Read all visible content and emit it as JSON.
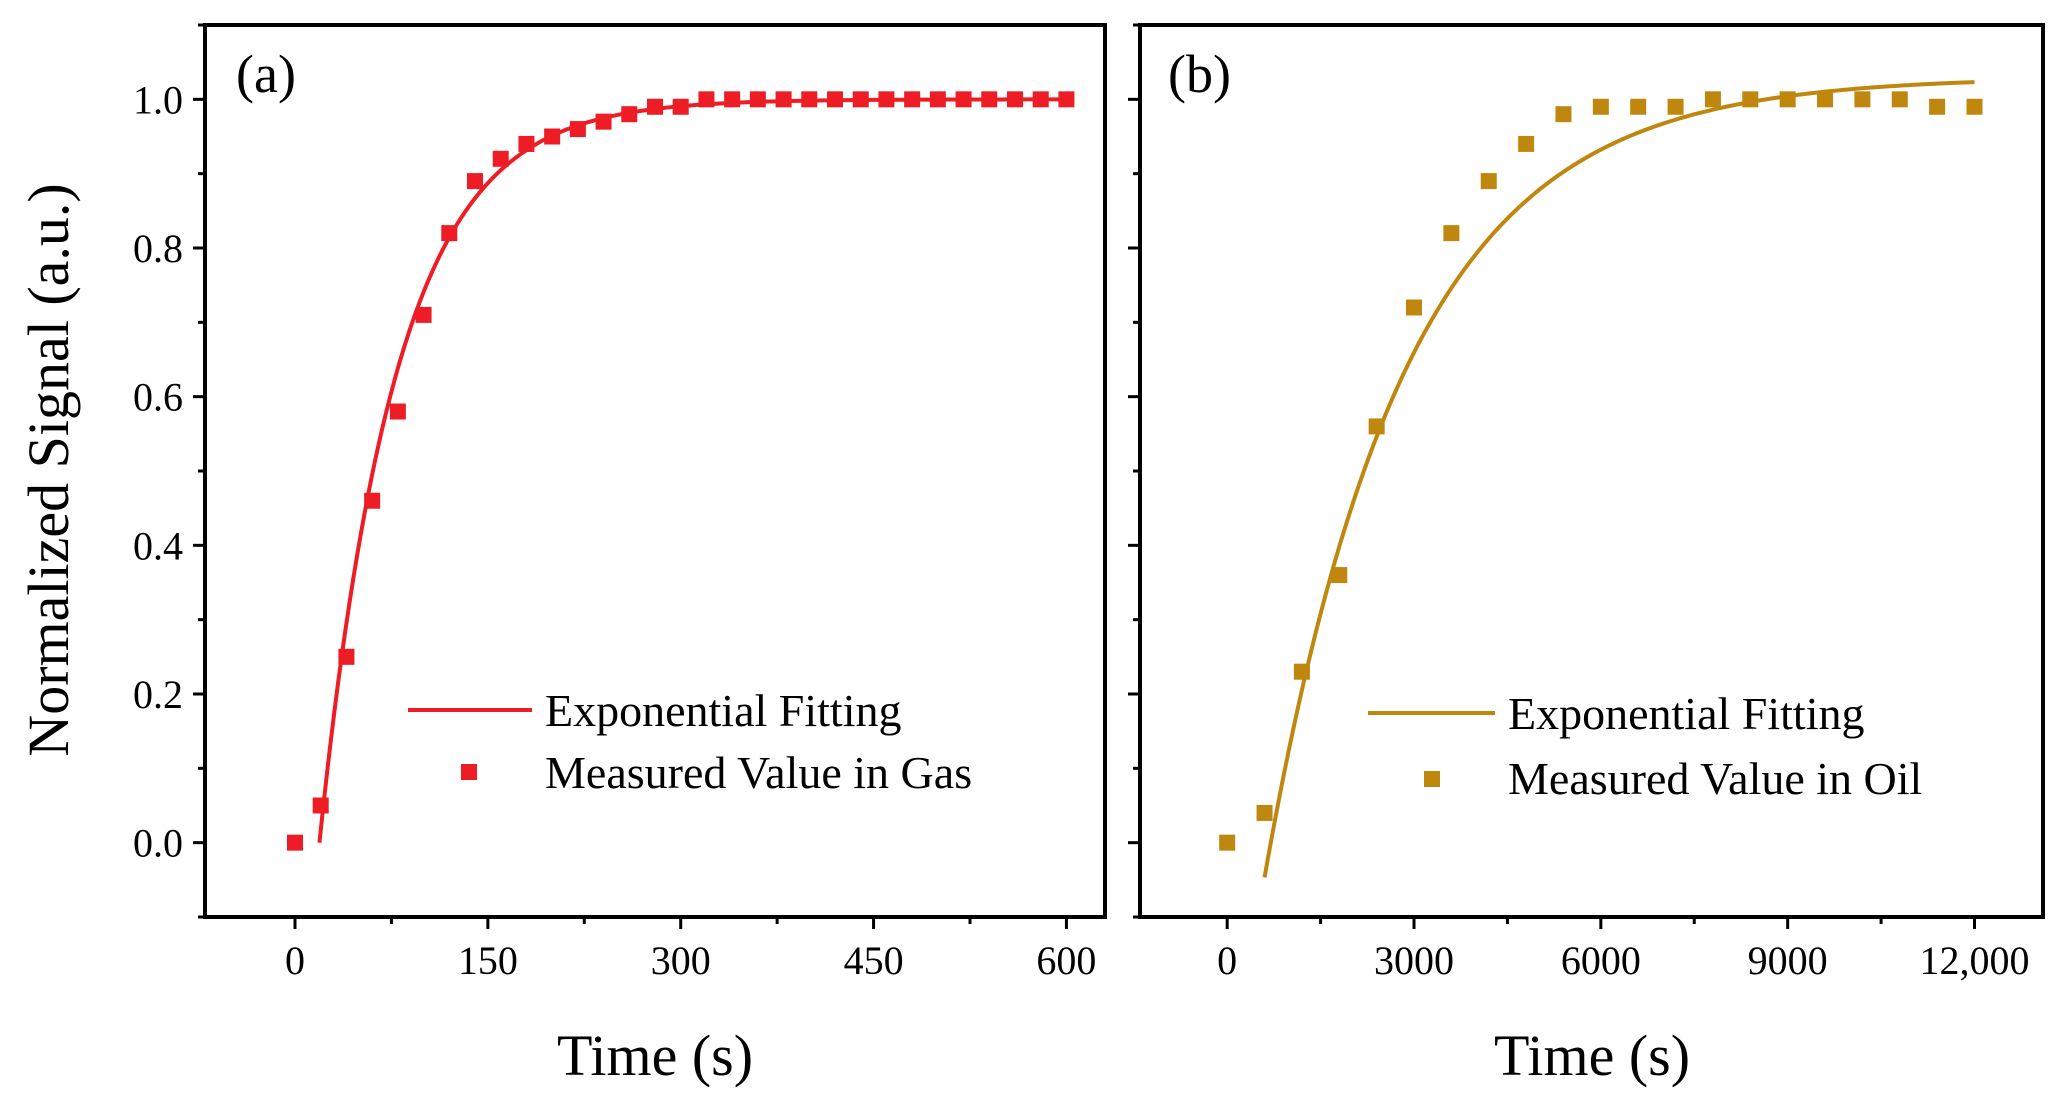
{
  "ylabel": "Normalized Signal (a.u.)",
  "chart_data": [
    {
      "type": "scatter",
      "panel_label": "(a)",
      "title": "",
      "xlabel": "Time (s)",
      "ylabel": "Normalized Signal (a.u.)",
      "xlim": [
        -70,
        630
      ],
      "ylim": [
        -0.1,
        1.1
      ],
      "xticks": [
        0,
        150,
        300,
        450,
        600
      ],
      "xtick_labels": [
        "0",
        "150",
        "300",
        "450",
        "600"
      ],
      "yticks": [
        0.0,
        0.2,
        0.4,
        0.6,
        0.8,
        1.0
      ],
      "ytick_labels": [
        "0.0",
        "0.2",
        "0.4",
        "0.6",
        "0.8",
        "1.0"
      ],
      "color": "#ee1c25",
      "legend_position": "bottom-right",
      "series": [
        {
          "name": "Exponential Fitting",
          "kind": "line",
          "fit": {
            "model": "1 - exp(-(t - t0)/tau)",
            "t0": 19,
            "tau": 60,
            "x_range": [
              19,
              600
            ]
          }
        },
        {
          "name": "Measured Value in Gas",
          "kind": "scatter",
          "marker": "square",
          "x": [
            0,
            20,
            40,
            60,
            80,
            100,
            120,
            140,
            160,
            180,
            200,
            220,
            240,
            260,
            280,
            300,
            320,
            340,
            360,
            380,
            400,
            420,
            440,
            460,
            480,
            500,
            520,
            540,
            560,
            580,
            600
          ],
          "y": [
            0.0,
            0.05,
            0.25,
            0.46,
            0.58,
            0.71,
            0.82,
            0.89,
            0.92,
            0.94,
            0.95,
            0.96,
            0.97,
            0.98,
            0.99,
            0.99,
            1.0,
            1.0,
            1.0,
            1.0,
            1.0,
            1.0,
            1.0,
            1.0,
            1.0,
            1.0,
            1.0,
            1.0,
            1.0,
            1.0,
            1.0
          ]
        }
      ]
    },
    {
      "type": "scatter",
      "panel_label": "(b)",
      "title": "",
      "xlabel": "Time (s)",
      "ylabel": "",
      "xlim": [
        -1400,
        13100
      ],
      "ylim": [
        -0.1,
        1.1
      ],
      "xticks": [
        0,
        3000,
        6000,
        9000,
        12000
      ],
      "xtick_labels": [
        "0",
        "3000",
        "6000",
        "9000",
        "12,000"
      ],
      "yticks": [
        0.0,
        0.2,
        0.4,
        0.6,
        0.8,
        1.0
      ],
      "ytick_labels": [],
      "color": "#c0870f",
      "legend_position": "bottom-right",
      "series": [
        {
          "name": "Exponential Fitting",
          "kind": "line",
          "fit": {
            "model": "A * (1 - exp(-(t - t0)/tau))",
            "A": 1.03,
            "t0": 700,
            "tau": 2250,
            "x_range": [
              600,
              12000
            ]
          }
        },
        {
          "name": "Measured Value in Oil",
          "kind": "scatter",
          "marker": "square",
          "x": [
            0,
            600,
            1200,
            1800,
            2400,
            3000,
            3600,
            4200,
            4800,
            5400,
            6000,
            6600,
            7200,
            7800,
            8400,
            9000,
            9600,
            10200,
            10800,
            11400,
            12000
          ],
          "y": [
            0.0,
            0.04,
            0.23,
            0.36,
            0.56,
            0.72,
            0.82,
            0.89,
            0.94,
            0.98,
            0.99,
            0.99,
            0.99,
            1.0,
            1.0,
            1.0,
            1.0,
            1.0,
            1.0,
            0.99,
            0.99
          ]
        }
      ]
    }
  ]
}
